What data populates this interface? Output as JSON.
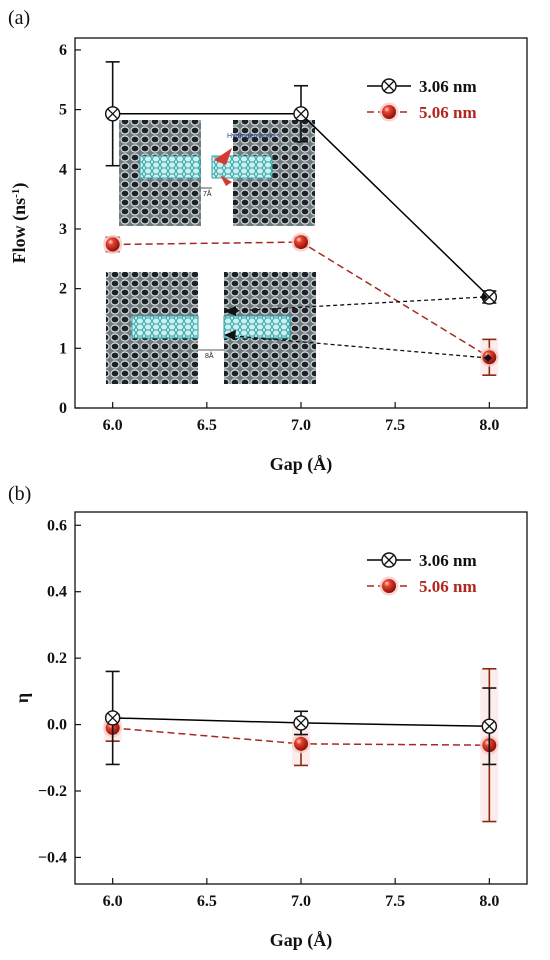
{
  "chart_data": [
    {
      "panel_label": "(a)",
      "type": "line",
      "xlabel": "Gap (Å)",
      "ylabel": "Flow (ns⁻¹)",
      "xlim": [
        5.8,
        8.2
      ],
      "ylim": [
        0,
        6.2
      ],
      "xticks": [
        "6.0",
        "6.5",
        "7.0",
        "7.5",
        "8.0"
      ],
      "yticks": [
        "0",
        "1",
        "2",
        "3",
        "4",
        "5",
        "6"
      ],
      "legend_position": "top-right",
      "series": [
        {
          "name": "3.06 nm",
          "color": "#000000",
          "marker": "circle-x",
          "line": "solid",
          "x": [
            6.0,
            7.0,
            8.0
          ],
          "y": [
            4.93,
            4.93,
            1.86
          ],
          "err": [
            0.87,
            0.47,
            0.1
          ]
        },
        {
          "name": "5.06 nm",
          "color": "#a52a1e",
          "marker": "red-ball",
          "line": "dashed",
          "x": [
            6.0,
            7.0,
            8.0
          ],
          "y": [
            2.74,
            2.78,
            0.85
          ],
          "err": [
            0.12,
            0.08,
            0.3
          ]
        }
      ],
      "inset_labels": {
        "hydrogen_bond": "Hydrogen bond",
        "gap_top": "7Å",
        "gap_bottom": "8Å"
      }
    },
    {
      "panel_label": "(b)",
      "type": "line",
      "xlabel": "Gap (Å)",
      "ylabel": "η",
      "xlim": [
        5.8,
        8.2
      ],
      "ylim": [
        -0.48,
        0.64
      ],
      "xticks": [
        "6.0",
        "6.5",
        "7.0",
        "7.5",
        "8.0"
      ],
      "yticks": [
        "0.6",
        "0.4",
        "0.2",
        "0.0",
        "−0.2",
        "−0.4"
      ],
      "ytick_values": [
        0.6,
        0.4,
        0.2,
        0.0,
        -0.2,
        -0.4
      ],
      "legend_position": "top-right",
      "series": [
        {
          "name": "3.06 nm",
          "color": "#000000",
          "marker": "circle-x",
          "line": "solid",
          "x": [
            6.0,
            7.0,
            8.0
          ],
          "y": [
            0.02,
            0.005,
            -0.005
          ],
          "err": [
            0.14,
            0.035,
            0.115
          ]
        },
        {
          "name": "5.06 nm",
          "color": "#a52a1e",
          "marker": "red-ball",
          "line": "dashed",
          "x": [
            6.0,
            7.0,
            8.0
          ],
          "y": [
            -0.01,
            -0.058,
            -0.062
          ],
          "err": [
            0.04,
            0.065,
            0.23
          ]
        }
      ]
    }
  ]
}
